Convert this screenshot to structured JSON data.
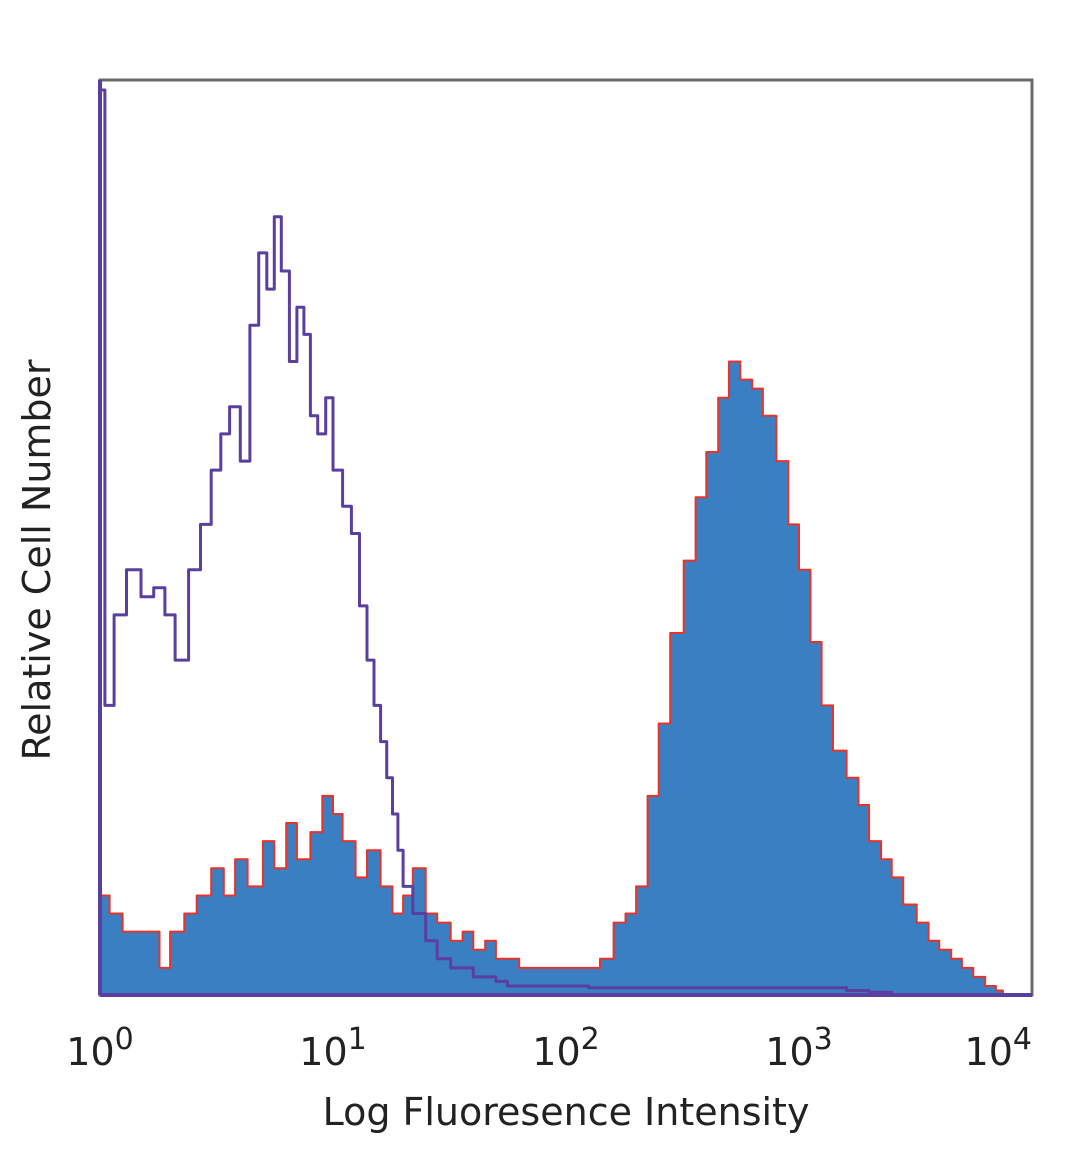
{
  "chart_data": {
    "type": "area",
    "title": "",
    "xlabel": "Log Fluoresence Intensity",
    "ylabel": "Relative Cell Number",
    "x_scale": "log",
    "xlim": [
      1,
      10000
    ],
    "ylim": [
      0,
      100
    ],
    "grid": false,
    "legend": "none",
    "x_ticks": [
      {
        "value": 1,
        "base": "10",
        "exp": "0"
      },
      {
        "value": 10,
        "base": "10",
        "exp": "1"
      },
      {
        "value": 100,
        "base": "10",
        "exp": "2"
      },
      {
        "value": 1000,
        "base": "10",
        "exp": "3"
      },
      {
        "value": 10000,
        "base": "10",
        "exp": "4"
      }
    ],
    "series": [
      {
        "style": "filled",
        "fill_color": "#3a7fc1",
        "edge_color": "#e8332a",
        "x": [
          1,
          1.1,
          1.25,
          1.4,
          1.6,
          1.8,
          2,
          2.3,
          2.6,
          3,
          3.4,
          3.8,
          4.3,
          5,
          5.6,
          6.3,
          7,
          8,
          9,
          10,
          11,
          12.5,
          14,
          16,
          18,
          20,
          22,
          25,
          28,
          32,
          36,
          40,
          45,
          50,
          56,
          63,
          70,
          80,
          90,
          100,
          112,
          125,
          140,
          160,
          180,
          200,
          224,
          250,
          280,
          320,
          360,
          400,
          450,
          500,
          560,
          630,
          700,
          800,
          900,
          1000,
          1120,
          1250,
          1400,
          1600,
          1800,
          2000,
          2250,
          2500,
          2800,
          3200,
          3600,
          4000,
          4500,
          5000,
          5600,
          6300,
          7000,
          7500
        ],
        "values": [
          11,
          9,
          7,
          7,
          7,
          3,
          7,
          9,
          11,
          14,
          11,
          15,
          12,
          17,
          14,
          19,
          15,
          18,
          22,
          20,
          17,
          13,
          16,
          12,
          9,
          11,
          14,
          9,
          8,
          6,
          7,
          5,
          6,
          4,
          4,
          3,
          3,
          3,
          3,
          3,
          3,
          3,
          4,
          8,
          9,
          12,
          22,
          30,
          40,
          48,
          55,
          60,
          66,
          70,
          68,
          67,
          64,
          59,
          52,
          47,
          39,
          32,
          27,
          24,
          21,
          17,
          15,
          13,
          10,
          8,
          6,
          5,
          4,
          3,
          2,
          1,
          0.5,
          0
        ]
      },
      {
        "style": "outline",
        "line_color": "#5b3f9e",
        "x": [
          1,
          1.05,
          1.15,
          1.3,
          1.5,
          1.7,
          1.9,
          2.1,
          2.4,
          2.7,
          3,
          3.3,
          3.6,
          4,
          4.4,
          4.8,
          5.2,
          5.6,
          6,
          6.5,
          7,
          7.5,
          8,
          8.6,
          9.3,
          10,
          11,
          12,
          13,
          14,
          15,
          16,
          17,
          18,
          19,
          20,
          22,
          25,
          28,
          32,
          36,
          40,
          45,
          50,
          56,
          63,
          70,
          80,
          90,
          100,
          125,
          160,
          200,
          250,
          320,
          400,
          500,
          630,
          800,
          1000,
          1250,
          1600,
          2000,
          2500
        ],
        "values": [
          100,
          32,
          42,
          47,
          44,
          45,
          42,
          37,
          47,
          52,
          58,
          62,
          65,
          59,
          74,
          82,
          78,
          86,
          80,
          70,
          76,
          73,
          64,
          62,
          66,
          58,
          54,
          51,
          43,
          37,
          32,
          28,
          24,
          20,
          16,
          12,
          9,
          6,
          4,
          3,
          3,
          2,
          2,
          1.5,
          1,
          1,
          1,
          1,
          1,
          1,
          0.8,
          0.8,
          0.8,
          0.8,
          0.8,
          0.8,
          0.8,
          0.8,
          0.8,
          0.8,
          0.8,
          0.5,
          0.3,
          0
        ]
      }
    ]
  }
}
